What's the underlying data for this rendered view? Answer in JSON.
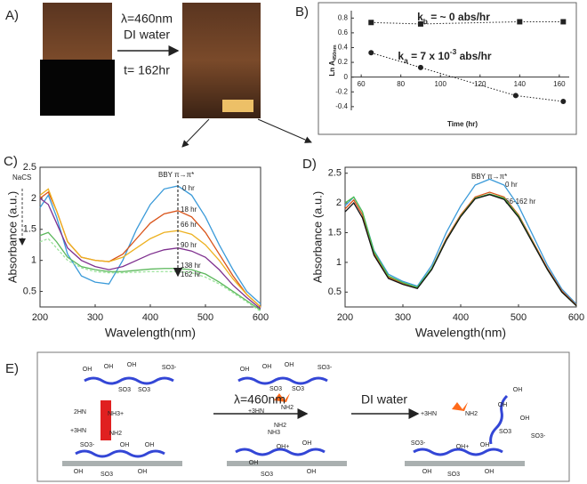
{
  "panel_a": {
    "label": "A)",
    "arrow_top": "λ=460nm",
    "arrow_mid": "DI water",
    "arrow_bottom": "t= 162hr"
  },
  "chart_data": [
    {
      "type": "scatter",
      "panel": "B)",
      "ylabel": [
        "Ln A",
        "450nm"
      ],
      "xlabel": "Time (hr)",
      "annotations": [
        [
          "k",
          "b",
          " = ~ 0 abs/hr"
        ],
        [
          "k",
          "a",
          " = 7 x 10",
          "-3",
          " abs/hr"
        ]
      ],
      "xlim": [
        55,
        165
      ],
      "xticks": [
        60,
        80,
        100,
        120,
        140,
        160
      ],
      "ylim": [
        -0.45,
        0.9
      ],
      "yticks": [
        -0.4,
        -0.2,
        0,
        0.2,
        0.4,
        0.6,
        0.8
      ],
      "series": [
        {
          "marker": "square",
          "color": "#222",
          "x": [
            65,
            90,
            140,
            162
          ],
          "values": [
            0.74,
            0.72,
            0.75,
            0.75
          ]
        },
        {
          "marker": "circle",
          "color": "#222",
          "x": [
            65,
            90,
            138,
            162
          ],
          "values": [
            0.33,
            0.13,
            -0.25,
            -0.33
          ]
        }
      ]
    },
    {
      "type": "line",
      "panel": "C)",
      "ylabel": "Absorbance (a.u.)",
      "xlabel": "Wavelength(nm)",
      "annotations": [
        "NaCS",
        "BBY π→π*"
      ],
      "xlim": [
        200,
        600
      ],
      "xticks": [
        200,
        300,
        400,
        500,
        600
      ],
      "ylim": [
        0.25,
        2.5
      ],
      "yticks": [
        0.5,
        1,
        1.5,
        2,
        2.5
      ],
      "x": [
        200,
        215,
        230,
        250,
        275,
        300,
        325,
        350,
        375,
        400,
        425,
        450,
        475,
        500,
        525,
        550,
        575,
        600
      ],
      "series": [
        {
          "name": "0 hr",
          "color": "#3a9ad9",
          "values": [
            1.85,
            2.05,
            1.7,
            1.1,
            0.75,
            0.65,
            0.62,
            1.0,
            1.5,
            1.9,
            2.15,
            2.2,
            2.05,
            1.7,
            1.25,
            0.85,
            0.5,
            0.3
          ]
        },
        {
          "name": "18 hr",
          "color": "#d95319",
          "values": [
            2.0,
            2.1,
            1.8,
            1.3,
            1.05,
            1.0,
            0.98,
            1.1,
            1.35,
            1.6,
            1.75,
            1.8,
            1.7,
            1.45,
            1.1,
            0.75,
            0.45,
            0.25
          ]
        },
        {
          "name": "66 hr",
          "color": "#edb120",
          "values": [
            2.05,
            2.15,
            1.8,
            1.3,
            1.05,
            1.0,
            0.98,
            1.05,
            1.2,
            1.35,
            1.45,
            1.48,
            1.42,
            1.25,
            1.0,
            0.7,
            0.45,
            0.25
          ]
        },
        {
          "name": "90 hr",
          "color": "#7e2f8e",
          "values": [
            2.0,
            1.9,
            1.6,
            1.2,
            1.0,
            0.9,
            0.85,
            0.9,
            1.0,
            1.1,
            1.17,
            1.2,
            1.15,
            1.05,
            0.85,
            0.6,
            0.4,
            0.22
          ]
        },
        {
          "name": "138 hr",
          "color": "#5cb85c",
          "values": [
            1.4,
            1.45,
            1.3,
            1.05,
            0.9,
            0.85,
            0.82,
            0.82,
            0.84,
            0.86,
            0.87,
            0.87,
            0.85,
            0.78,
            0.65,
            0.5,
            0.35,
            0.2
          ]
        },
        {
          "name": "162 hr",
          "color": "#9be39b",
          "dashed": true,
          "values": [
            1.3,
            1.35,
            1.2,
            1.0,
            0.88,
            0.82,
            0.8,
            0.8,
            0.81,
            0.82,
            0.82,
            0.82,
            0.8,
            0.73,
            0.62,
            0.48,
            0.33,
            0.18
          ]
        }
      ]
    },
    {
      "type": "line",
      "panel": "D)",
      "ylabel": "Absorbance (a.u.)",
      "xlabel": "Wavelength(nm)",
      "annotations": [
        "BBY π→π*"
      ],
      "xlim": [
        200,
        600
      ],
      "xticks": [
        200,
        300,
        400,
        500,
        600
      ],
      "ylim": [
        0.25,
        2.6
      ],
      "yticks": [
        0.5,
        1,
        1.5,
        2,
        2.5
      ],
      "x": [
        200,
        215,
        230,
        250,
        275,
        300,
        325,
        350,
        375,
        400,
        425,
        450,
        475,
        500,
        525,
        550,
        575,
        600
      ],
      "series": [
        {
          "name": "0 hr",
          "color": "#3a9ad9",
          "values": [
            1.95,
            2.1,
            1.85,
            1.2,
            0.8,
            0.68,
            0.6,
            0.95,
            1.5,
            1.95,
            2.3,
            2.4,
            2.3,
            1.95,
            1.45,
            0.95,
            0.55,
            0.3
          ]
        },
        {
          "name": "66-162 hr",
          "color": "#d95319",
          "values": [
            1.9,
            2.05,
            1.8,
            1.15,
            0.75,
            0.65,
            0.57,
            0.9,
            1.4,
            1.8,
            2.1,
            2.18,
            2.1,
            1.8,
            1.35,
            0.9,
            0.52,
            0.28
          ]
        },
        {
          "color": "#4dbd4d",
          "values": [
            2.0,
            2.1,
            1.85,
            1.18,
            0.77,
            0.66,
            0.58,
            0.9,
            1.38,
            1.78,
            2.08,
            2.15,
            2.08,
            1.78,
            1.33,
            0.88,
            0.5,
            0.27
          ]
        },
        {
          "color": "#111111",
          "values": [
            1.85,
            2.0,
            1.75,
            1.12,
            0.73,
            0.63,
            0.56,
            0.88,
            1.37,
            1.77,
            2.07,
            2.14,
            2.06,
            1.76,
            1.32,
            0.88,
            0.5,
            0.27
          ]
        }
      ]
    }
  ],
  "panel_e": {
    "label": "E)",
    "arrow_1": "λ=460nm",
    "arrow_2": "DI water",
    "labels": [
      "OH",
      "OH",
      "OH",
      "SO3-",
      "SO3",
      "SO3",
      "2HN",
      "NH3+",
      "+3HN",
      "NH2",
      "SO3-",
      "OH",
      "OH",
      "OH",
      "SO3",
      "OH",
      "OH",
      "OH",
      "OH",
      "SO3-",
      "SO3",
      "SO3",
      "+3HN",
      "NH2",
      "NH2",
      "NH3",
      "OH",
      "OH+",
      "OH",
      "SO3",
      "OH",
      "+3HN",
      "NH2",
      "SO3-",
      "OH",
      "OH+",
      "OH",
      "SO3",
      "OH",
      "OH",
      "OH",
      "SO3",
      "OH",
      "SO3-"
    ]
  }
}
